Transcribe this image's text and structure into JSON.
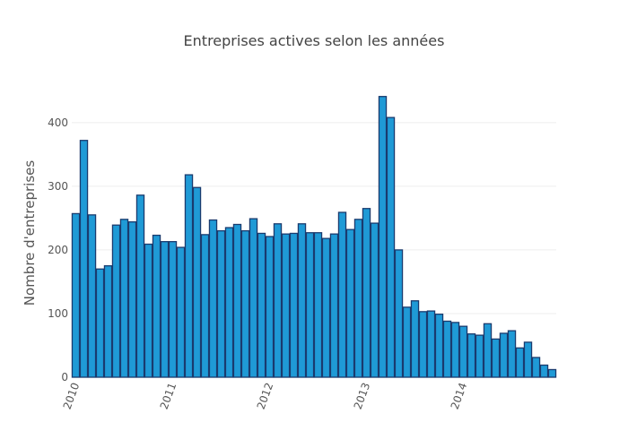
{
  "chart_data": {
    "type": "bar",
    "title": "Entreprises actives selon les années",
    "xlabel": "",
    "ylabel": "Nombre d'entreprises",
    "x_tick_labels": [
      "2010",
      "2011",
      "2012",
      "2013",
      "2014"
    ],
    "y_ticks": [
      0,
      100,
      200,
      300,
      400
    ],
    "ylim": [
      0,
      480
    ],
    "grid": true,
    "legend": "none",
    "bar_color": "#1f9ad6",
    "bar_border_color": "#1a3b6e",
    "x_start_month": "2010-01",
    "values": [
      257,
      372,
      255,
      170,
      175,
      239,
      248,
      244,
      286,
      209,
      223,
      213,
      213,
      204,
      318,
      298,
      224,
      247,
      230,
      235,
      240,
      230,
      249,
      226,
      221,
      241,
      225,
      226,
      241,
      227,
      227,
      218,
      225,
      259,
      232,
      248,
      265,
      242,
      441,
      408,
      200,
      110,
      120,
      103,
      104,
      99,
      88,
      86,
      80,
      68,
      66,
      84,
      60,
      69,
      73,
      46,
      55,
      31,
      19,
      12
    ]
  }
}
